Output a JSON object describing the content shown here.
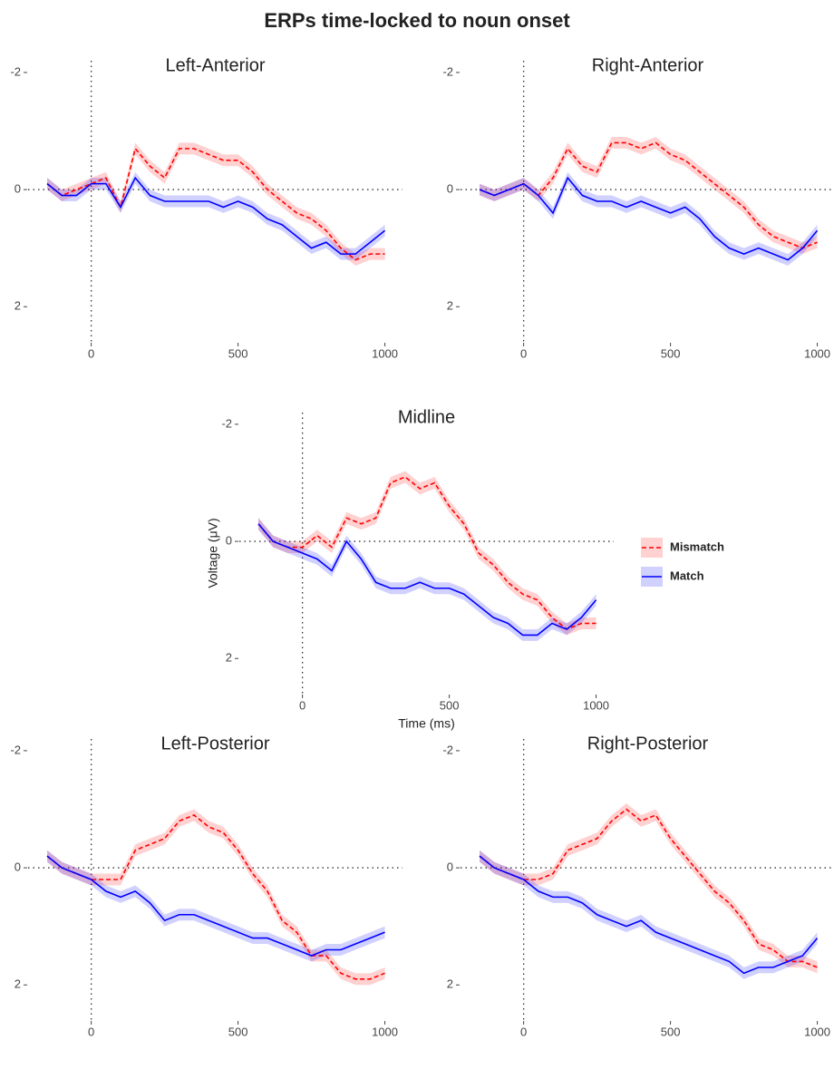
{
  "title": "ERPs time-locked to noun onset",
  "chart_data": [
    {
      "type": "line",
      "title": "Left-Anterior",
      "x": [
        -150,
        -100,
        -50,
        0,
        50,
        100,
        150,
        200,
        250,
        300,
        350,
        400,
        450,
        500,
        550,
        600,
        650,
        700,
        750,
        800,
        850,
        900,
        950,
        1000
      ],
      "series": [
        {
          "color": "#ff0000",
          "linestyle": "dashed",
          "ci": 0.1,
          "values": [
            -0.1,
            0.1,
            0.0,
            -0.1,
            -0.2,
            0.3,
            -0.7,
            -0.4,
            -0.2,
            -0.7,
            -0.7,
            -0.6,
            -0.5,
            -0.5,
            -0.3,
            0.0,
            0.2,
            0.4,
            0.5,
            0.7,
            1.0,
            1.2,
            1.1,
            1.1
          ]
        },
        {
          "color": "#0000ff",
          "linestyle": "solid",
          "ci": 0.1,
          "values": [
            -0.1,
            0.1,
            0.1,
            -0.1,
            -0.1,
            0.3,
            -0.2,
            0.1,
            0.2,
            0.2,
            0.2,
            0.2,
            0.3,
            0.2,
            0.3,
            0.5,
            0.6,
            0.8,
            1.0,
            0.9,
            1.1,
            1.1,
            0.9,
            0.7
          ]
        }
      ],
      "xlim": [
        -215,
        1060
      ],
      "ylim": [
        -2.2,
        2.6
      ],
      "y_reversed": true,
      "xticks": [
        0,
        500,
        1000
      ],
      "yticks": [
        -2,
        0,
        2
      ],
      "hline": 0,
      "vline": 0
    },
    {
      "type": "line",
      "title": "Right-Anterior",
      "x": [
        -150,
        -100,
        -50,
        0,
        50,
        100,
        150,
        200,
        250,
        300,
        350,
        400,
        450,
        500,
        550,
        600,
        650,
        700,
        750,
        800,
        850,
        900,
        950,
        1000
      ],
      "series": [
        {
          "color": "#ff0000",
          "linestyle": "dashed",
          "ci": 0.1,
          "values": [
            0.0,
            0.1,
            0.0,
            -0.1,
            0.1,
            -0.2,
            -0.7,
            -0.4,
            -0.3,
            -0.8,
            -0.8,
            -0.7,
            -0.8,
            -0.6,
            -0.5,
            -0.3,
            -0.1,
            0.1,
            0.3,
            0.6,
            0.8,
            0.9,
            1.0,
            0.9
          ]
        },
        {
          "color": "#0000ff",
          "linestyle": "solid",
          "ci": 0.1,
          "values": [
            0.0,
            0.1,
            0.0,
            -0.1,
            0.1,
            0.4,
            -0.2,
            0.1,
            0.2,
            0.2,
            0.3,
            0.2,
            0.3,
            0.4,
            0.3,
            0.5,
            0.8,
            1.0,
            1.1,
            1.0,
            1.1,
            1.2,
            1.0,
            0.7
          ]
        }
      ],
      "xlim": [
        -215,
        1060
      ],
      "ylim": [
        -2.2,
        2.6
      ],
      "y_reversed": true,
      "xticks": [
        0,
        500,
        1000
      ],
      "yticks": [
        -2,
        0,
        2
      ],
      "hline": 0,
      "vline": 0
    },
    {
      "type": "line",
      "title": "Midline",
      "xlabel": "Time (ms)",
      "ylabel": "Voltage (μV)",
      "legend": "right",
      "x": [
        -150,
        -100,
        -50,
        0,
        50,
        100,
        150,
        200,
        250,
        300,
        350,
        400,
        450,
        500,
        550,
        600,
        650,
        700,
        750,
        800,
        850,
        900,
        950,
        1000
      ],
      "series": [
        {
          "name": "Mismatch",
          "color": "#ff0000",
          "linestyle": "dashed",
          "ci": 0.1,
          "values": [
            -0.3,
            0.0,
            0.1,
            0.1,
            -0.1,
            0.1,
            -0.4,
            -0.3,
            -0.4,
            -1.0,
            -1.1,
            -0.9,
            -1.0,
            -0.6,
            -0.3,
            0.2,
            0.4,
            0.7,
            0.9,
            1.0,
            1.3,
            1.5,
            1.4,
            1.4
          ]
        },
        {
          "name": "Match",
          "color": "#0000ff",
          "linestyle": "solid",
          "ci": 0.1,
          "values": [
            -0.3,
            0.0,
            0.1,
            0.2,
            0.3,
            0.5,
            0.0,
            0.3,
            0.7,
            0.8,
            0.8,
            0.7,
            0.8,
            0.8,
            0.9,
            1.1,
            1.3,
            1.4,
            1.6,
            1.6,
            1.4,
            1.5,
            1.3,
            1.0
          ]
        }
      ],
      "xlim": [
        -215,
        1060
      ],
      "ylim": [
        -2.2,
        2.6
      ],
      "y_reversed": true,
      "xticks": [
        0,
        500,
        1000
      ],
      "yticks": [
        -2,
        0,
        2
      ],
      "hline": 0,
      "vline": 0
    },
    {
      "type": "line",
      "title": "Left-Posterior",
      "x": [
        -150,
        -100,
        -50,
        0,
        50,
        100,
        150,
        200,
        250,
        300,
        350,
        400,
        450,
        500,
        550,
        600,
        650,
        700,
        750,
        800,
        850,
        900,
        950,
        1000
      ],
      "series": [
        {
          "color": "#ff0000",
          "linestyle": "dashed",
          "ci": 0.1,
          "values": [
            -0.2,
            0.0,
            0.1,
            0.2,
            0.2,
            0.2,
            -0.3,
            -0.4,
            -0.5,
            -0.8,
            -0.9,
            -0.7,
            -0.6,
            -0.3,
            0.1,
            0.4,
            0.9,
            1.1,
            1.5,
            1.5,
            1.8,
            1.9,
            1.9,
            1.8
          ]
        },
        {
          "color": "#0000ff",
          "linestyle": "solid",
          "ci": 0.1,
          "values": [
            -0.2,
            0.0,
            0.1,
            0.2,
            0.4,
            0.5,
            0.4,
            0.6,
            0.9,
            0.8,
            0.8,
            0.9,
            1.0,
            1.1,
            1.2,
            1.2,
            1.3,
            1.4,
            1.5,
            1.4,
            1.4,
            1.3,
            1.2,
            1.1
          ]
        }
      ],
      "xlim": [
        -215,
        1060
      ],
      "ylim": [
        -2.2,
        2.6
      ],
      "y_reversed": true,
      "xticks": [
        0,
        500,
        1000
      ],
      "yticks": [
        -2,
        0,
        2
      ],
      "hline": 0,
      "vline": 0
    },
    {
      "type": "line",
      "title": "Right-Posterior",
      "x": [
        -150,
        -100,
        -50,
        0,
        50,
        100,
        150,
        200,
        250,
        300,
        350,
        400,
        450,
        500,
        550,
        600,
        650,
        700,
        750,
        800,
        850,
        900,
        950,
        1000
      ],
      "series": [
        {
          "color": "#ff0000",
          "linestyle": "dashed",
          "ci": 0.1,
          "values": [
            -0.2,
            0.0,
            0.1,
            0.2,
            0.2,
            0.1,
            -0.3,
            -0.4,
            -0.5,
            -0.8,
            -1.0,
            -0.8,
            -0.9,
            -0.5,
            -0.2,
            0.1,
            0.4,
            0.6,
            0.9,
            1.3,
            1.4,
            1.6,
            1.6,
            1.7
          ]
        },
        {
          "color": "#0000ff",
          "linestyle": "solid",
          "ci": 0.1,
          "values": [
            -0.2,
            0.0,
            0.1,
            0.2,
            0.4,
            0.5,
            0.5,
            0.6,
            0.8,
            0.9,
            1.0,
            0.9,
            1.1,
            1.2,
            1.3,
            1.4,
            1.5,
            1.6,
            1.8,
            1.7,
            1.7,
            1.6,
            1.5,
            1.2
          ]
        }
      ],
      "xlim": [
        -215,
        1060
      ],
      "ylim": [
        -2.2,
        2.6
      ],
      "y_reversed": true,
      "xticks": [
        0,
        500,
        1000
      ],
      "yticks": [
        -2,
        0,
        2
      ],
      "hline": 0,
      "vline": 0
    }
  ]
}
